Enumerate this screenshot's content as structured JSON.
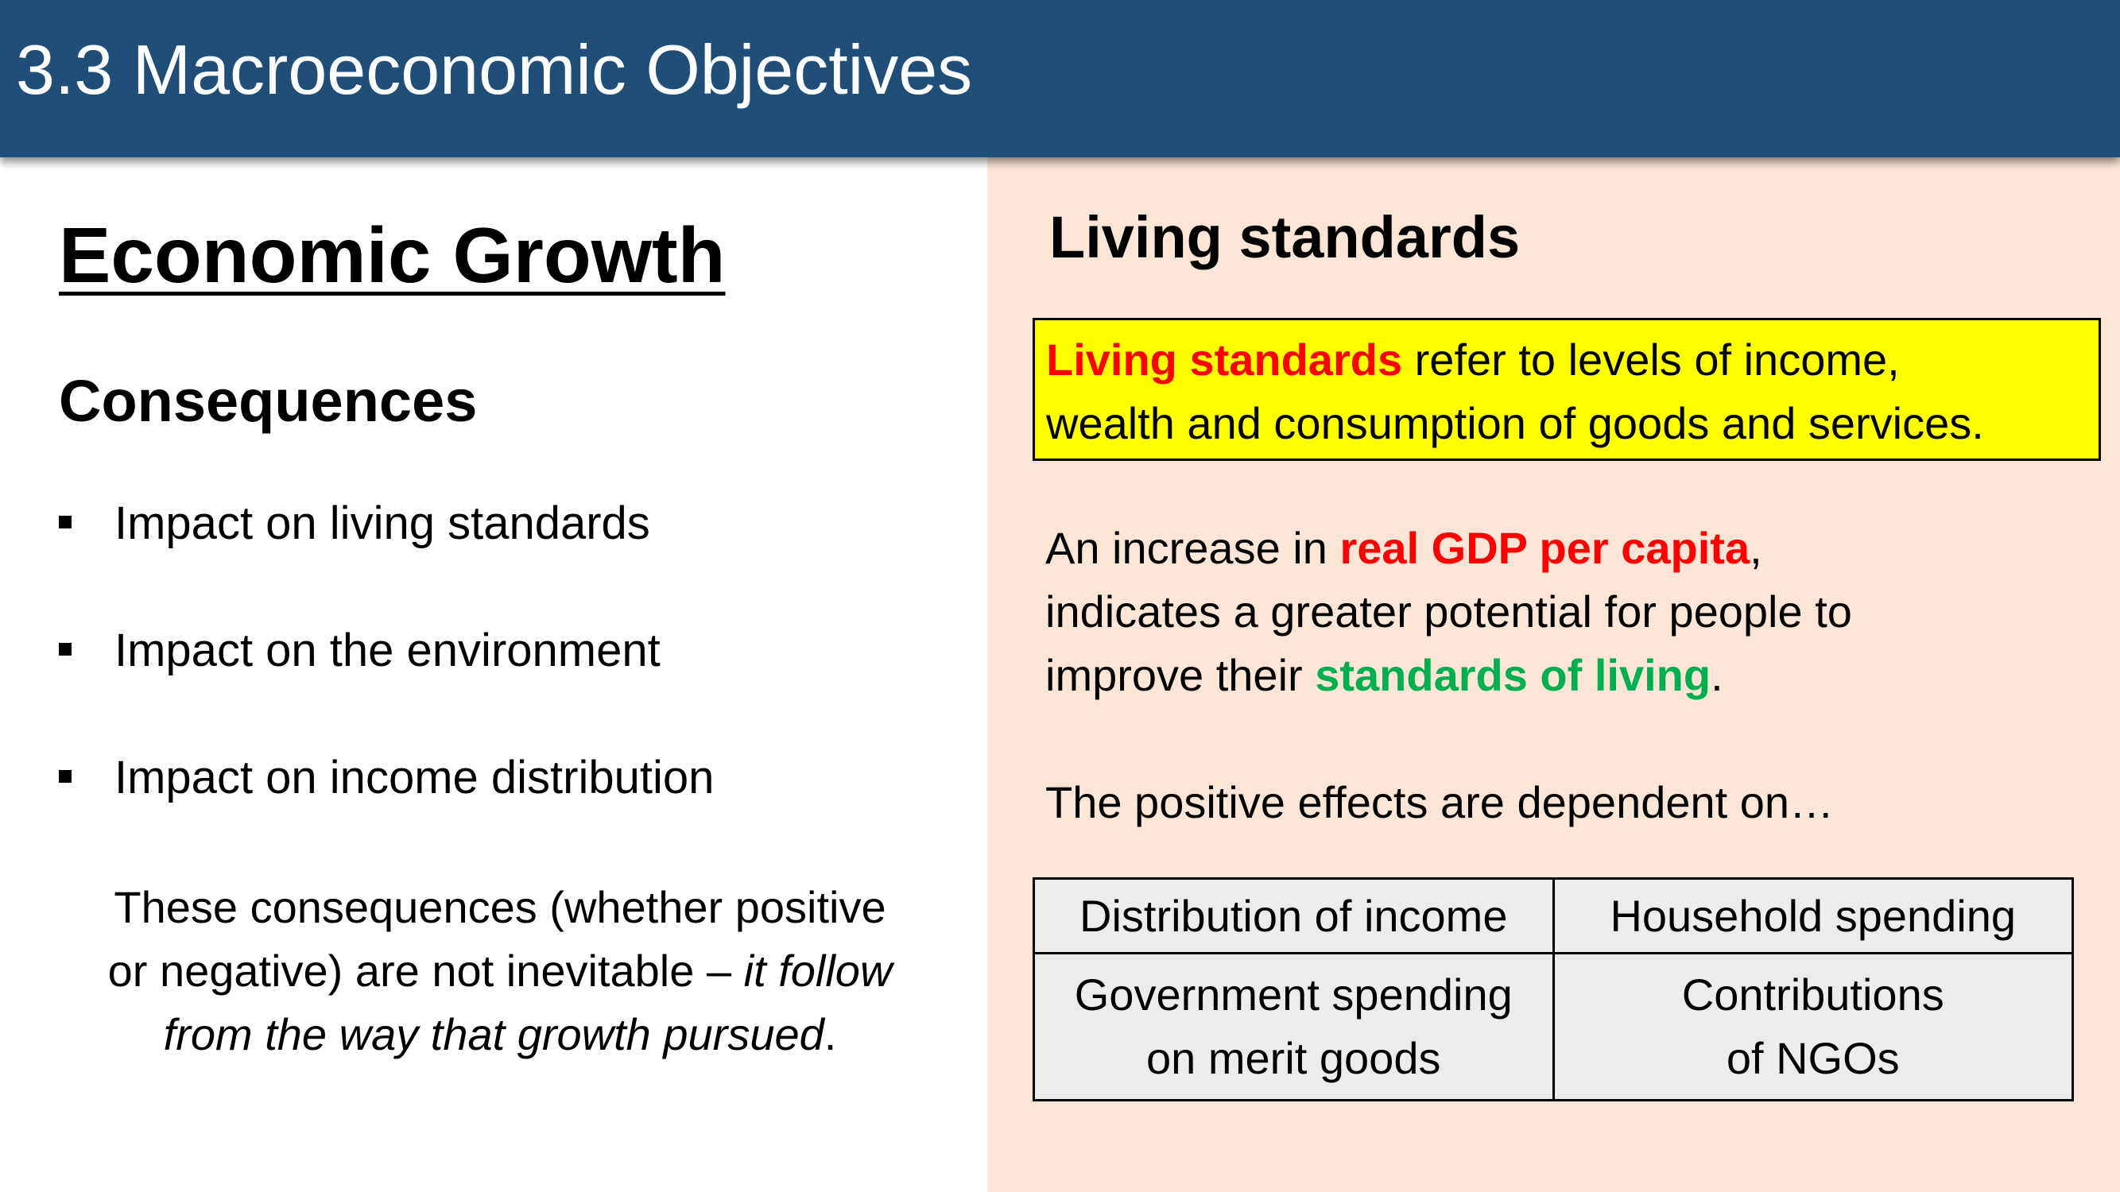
{
  "header": {
    "title": "3.3 Macroeconomic Objectives"
  },
  "left": {
    "title": "Economic Growth",
    "subtitle": "Consequences",
    "bullets": [
      "Impact on living standards",
      "Impact on the environment",
      "Impact on income distribution"
    ],
    "note": {
      "line1": "These consequences (whether positive",
      "line2_plain": "or negative) are not inevitable – ",
      "line2_italic": "it follow",
      "line3_italic": "from the way that growth pursued",
      "line3_end": "."
    }
  },
  "right": {
    "title": "Living standards",
    "definition": {
      "term": "Living standards",
      "rest_line1": " refer to levels of income,",
      "line2": "wealth and consumption of goods and services."
    },
    "paragraph": {
      "line1_start": "An increase in ",
      "line1_highlight": "real GDP per capita",
      "line1_end": ",",
      "line2": "indicates a greater potential for people to",
      "line3_start": "improve their ",
      "line3_highlight": "standards of living",
      "line3_end": "."
    },
    "dependent_intro": "The positive effects are dependent on…",
    "table": {
      "r1c1": "Distribution of income",
      "r1c2": "Household spending",
      "r2c1_line1": "Government spending",
      "r2c1_line2": "on merit goods",
      "r2c2_line1": "Contributions",
      "r2c2_line2": "of NGOs"
    }
  },
  "colors": {
    "header_bg": "#1f4e79",
    "right_panel_bg": "#fbe5d6",
    "definition_bg": "#ffff00",
    "highlight_red": "#ff0000",
    "highlight_green": "#00b050",
    "table_bg": "#ececec"
  }
}
